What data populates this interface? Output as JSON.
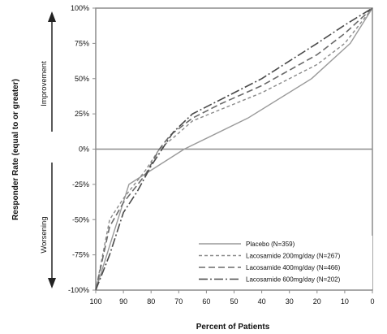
{
  "chart_data": {
    "type": "line",
    "title": "",
    "xlabel": "Percent of Patients",
    "ylabel": "Responder Rate (equal to or greater)",
    "xlim": [
      100,
      0
    ],
    "ylim": [
      -100,
      100
    ],
    "x_ticks": [
      "100",
      "90",
      "80",
      "70",
      "60",
      "50",
      "40",
      "30",
      "20",
      "10",
      "0"
    ],
    "y_ticks": [
      "100%",
      "75%",
      "50%",
      "25%",
      "0%",
      "-25%",
      "-50%",
      "-75%",
      "-100%"
    ],
    "annotations": {
      "improvement": "Improvement",
      "worsening": "Worsening"
    },
    "legend_position": "bottom-right",
    "grid": false,
    "series": [
      {
        "name": "Placebo (N=359)",
        "style": "solid",
        "color": "#9a9a9a",
        "x": [
          100,
          88,
          68,
          45,
          22,
          8,
          0
        ],
        "y": [
          -100,
          -25,
          0,
          22,
          50,
          75,
          100
        ]
      },
      {
        "name": "Lacosamide 200mg/day (N=267)",
        "style": "short-dash",
        "color": "#8a8a8a",
        "x": [
          100,
          95,
          90,
          82,
          77,
          72,
          65,
          55,
          40,
          20,
          10,
          0
        ],
        "y": [
          -100,
          -50,
          -35,
          -15,
          0,
          8,
          20,
          28,
          40,
          60,
          75,
          100
        ]
      },
      {
        "name": "Lacosamide 400mg/day (N=466)",
        "style": "long-dash",
        "color": "#6a6a6a",
        "x": [
          100,
          95,
          90,
          82,
          77,
          73,
          65,
          55,
          40,
          20,
          10,
          0
        ],
        "y": [
          -100,
          -55,
          -38,
          -18,
          0,
          10,
          22,
          32,
          45,
          67,
          82,
          100
        ]
      },
      {
        "name": "Lacosamide 600mg/day (N=202)",
        "style": "dash-dot",
        "color": "#4a4a4a",
        "x": [
          100,
          95,
          90,
          85,
          80,
          76,
          72,
          65,
          55,
          40,
          20,
          10,
          0
        ],
        "y": [
          -100,
          -75,
          -45,
          -30,
          -12,
          0,
          12,
          25,
          35,
          50,
          75,
          88,
          100
        ]
      }
    ]
  }
}
